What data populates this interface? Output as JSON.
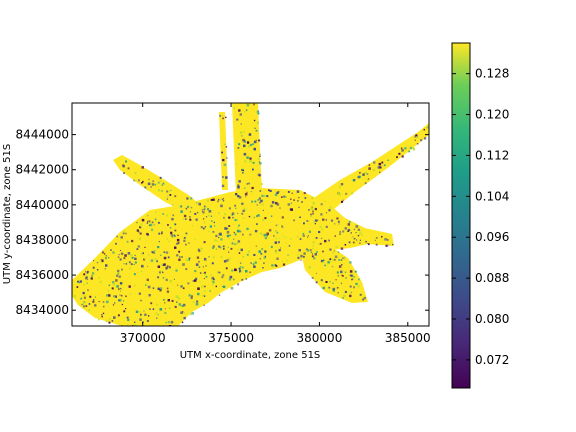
{
  "chart_data": {
    "type": "heatmap",
    "title": "",
    "xlabel": "UTM x-coordinate, zone 51S",
    "ylabel": "UTM y-coordinate, zone 51S",
    "xlim": [
      366000,
      386200
    ],
    "ylim": [
      8433100,
      8445800
    ],
    "x_ticks": [
      370000,
      375000,
      380000,
      385000
    ],
    "x_tick_labels": [
      "370000",
      "375000",
      "380000",
      "385000"
    ],
    "y_ticks": [
      8434000,
      8436000,
      8438000,
      8440000,
      8442000,
      8444000
    ],
    "y_tick_labels": [
      "8434000",
      "8436000",
      "8438000",
      "8440000",
      "8442000",
      "8444000"
    ],
    "colorbar": {
      "colormap": "viridis",
      "range": [
        0.0665,
        0.134
      ],
      "ticks": [
        0.072,
        0.08,
        0.088,
        0.096,
        0.104,
        0.112,
        0.12,
        0.128
      ],
      "tick_labels": [
        "0.072",
        "0.080",
        "0.088",
        "0.096",
        "0.104",
        "0.112",
        "0.120",
        "0.128"
      ]
    },
    "grid": false,
    "colors": {
      "high": "#fde725",
      "mid_high": "#b5de2b",
      "mid": "#1f9e89",
      "low": "#3e4989",
      "lowest": "#440154"
    }
  }
}
